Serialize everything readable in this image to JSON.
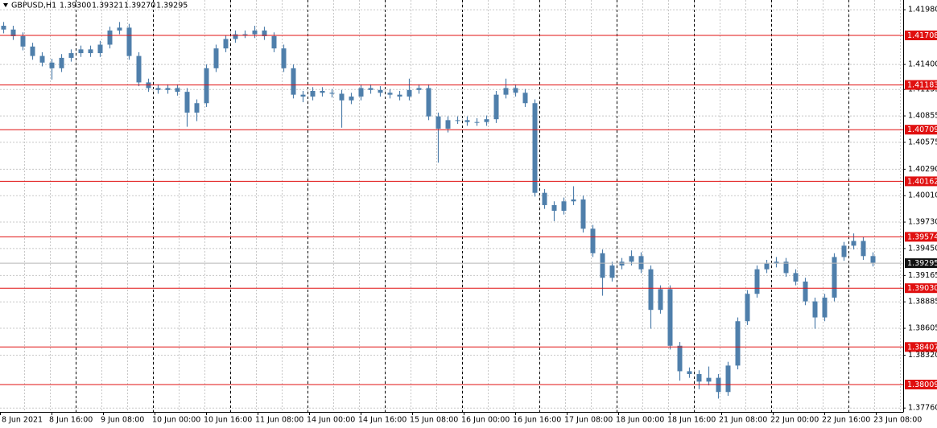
{
  "chart_data": {
    "type": "candlestick",
    "symbol": "GBPUSD,H1",
    "ohlc_header": [
      "1.39300",
      "1.39321",
      "1.39270",
      "1.39295"
    ],
    "color": "#4f7fab",
    "ylim": [
      1.37719,
      1.42083
    ],
    "yticks": [
      {
        "value": 1.4198,
        "label": "1.41980"
      },
      {
        "value": 1.414,
        "label": "1.41400"
      },
      1.41135,
      1.40855,
      1.40575,
      {
        "value": 1.4029,
        "label": "1.40290"
      },
      {
        "value": 1.4001,
        "label": "1.40010"
      },
      {
        "value": 1.3973,
        "label": "1.39730"
      },
      {
        "value": 1.3945,
        "label": "1.39450"
      },
      1.39165,
      1.38885,
      1.38605,
      {
        "value": 1.3832,
        "label": "1.38320"
      },
      {
        "value": 1.3776,
        "label": "1.37760"
      }
    ],
    "levels": [
      1.41708,
      1.41183,
      1.40709,
      1.40162,
      1.39574,
      {
        "value": 1.3903,
        "label": "1.39030"
      },
      1.38407,
      1.38009
    ],
    "level_color": "#e01010",
    "current_price": 1.39295,
    "xtick_labels": [
      "8 Jun 2021",
      "8 Jun 16:00",
      "9 Jun 08:00",
      "10 Jun 00:00",
      "10 Jun 16:00",
      "11 Jun 08:00",
      "14 Jun 00:00",
      "14 Jun 16:00",
      "15 Jun 08:00",
      "16 Jun 00:00",
      "16 Jun 16:00",
      "17 Jun 08:00",
      "18 Jun 00:00",
      "18 Jun 16:00",
      "21 Jun 08:00",
      "22 Jun 00:00",
      "22 Jun 16:00",
      "23 Jun 08:00"
    ],
    "open": [
      1.4181,
      1.4177,
      1.417,
      1.4159,
      1.4149,
      1.4142,
      1.4136,
      1.4147,
      1.4152,
      1.4156,
      1.4152,
      1.4161,
      1.4176,
      1.4179,
      1.4149,
      1.4121,
      1.4115,
      1.4113,
      1.4115,
      1.4111,
      1.4089,
      1.4099,
      1.4136,
      1.4157,
      1.4167,
      1.4172,
      1.4172,
      1.4176,
      1.417,
      1.4157,
      1.4136,
      1.4108,
      1.4106,
      1.4112,
      1.411,
      1.4109,
      1.4102,
      1.4106,
      1.4115,
      1.4113,
      1.411,
      1.4108,
      1.4106,
      1.4113,
      1.4115,
      1.4085,
      1.4072,
      1.4081,
      1.4081,
      1.4079,
      1.4079,
      1.4082,
      1.4108,
      1.4115,
      1.411,
      1.4099,
      1.4004,
      1.3991,
      1.3985,
      1.3995,
      1.3997,
      1.3966,
      1.394,
      1.3914,
      1.3927,
      1.3931,
      1.3937,
      1.3923,
      1.388,
      1.3902,
      1.3842,
      1.3815,
      1.3812,
      1.3804,
      1.3808,
      1.3793,
      1.3821,
      1.3868,
      1.3897,
      1.3923,
      1.3929,
      1.3931,
      1.3919,
      1.391,
      1.3889,
      1.3872,
      1.3893,
      1.3936,
      1.3948,
      1.3953,
      1.3937
    ],
    "high": [
      1.4185,
      1.4181,
      1.4174,
      1.4163,
      1.4153,
      1.4146,
      1.4151,
      1.4156,
      1.416,
      1.416,
      1.4165,
      1.418,
      1.4185,
      1.4183,
      1.4153,
      1.4125,
      1.4119,
      1.4119,
      1.4119,
      1.4115,
      1.4103,
      1.414,
      1.4161,
      1.4171,
      1.4176,
      1.4176,
      1.4181,
      1.418,
      1.4174,
      1.4161,
      1.414,
      1.4112,
      1.4116,
      1.4116,
      1.4114,
      1.4113,
      1.411,
      1.4119,
      1.4119,
      1.4117,
      1.4114,
      1.4112,
      1.4125,
      1.4119,
      1.4119,
      1.4089,
      1.4085,
      1.4085,
      1.4085,
      1.4083,
      1.4086,
      1.4112,
      1.4125,
      1.4119,
      1.4114,
      1.4103,
      1.4008,
      1.3995,
      1.3999,
      1.4011,
      1.4001,
      1.397,
      1.3944,
      1.3931,
      1.3935,
      1.3943,
      1.3941,
      1.3927,
      1.3906,
      1.3906,
      1.3846,
      1.3819,
      1.3816,
      1.382,
      1.3812,
      1.3825,
      1.3872,
      1.3901,
      1.3927,
      1.3933,
      1.3936,
      1.3935,
      1.3923,
      1.3914,
      1.3893,
      1.3897,
      1.394,
      1.3952,
      1.3961,
      1.3957,
      1.3941
    ],
    "low": [
      1.4173,
      1.4166,
      1.4155,
      1.4145,
      1.4138,
      1.4124,
      1.4132,
      1.4143,
      1.4148,
      1.4148,
      1.4148,
      1.4157,
      1.4172,
      1.4145,
      1.4117,
      1.4111,
      1.4109,
      1.4109,
      1.4107,
      1.4074,
      1.408,
      1.4095,
      1.4132,
      1.4153,
      1.4163,
      1.4168,
      1.4168,
      1.4166,
      1.4153,
      1.4132,
      1.4104,
      1.41,
      1.4102,
      1.4106,
      1.4105,
      1.4073,
      1.4098,
      1.4102,
      1.4109,
      1.4106,
      1.4104,
      1.4102,
      1.4102,
      1.4109,
      1.4081,
      1.4036,
      1.4068,
      1.4077,
      1.4075,
      1.4075,
      1.4075,
      1.4078,
      1.4104,
      1.4106,
      1.4095,
      1.4,
      1.3987,
      1.3974,
      1.3981,
      1.3991,
      1.3962,
      1.3936,
      1.3895,
      1.391,
      1.3923,
      1.3927,
      1.3919,
      1.386,
      1.3876,
      1.3838,
      1.3805,
      1.3808,
      1.3796,
      1.38,
      1.3786,
      1.3789,
      1.3817,
      1.3864,
      1.3893,
      1.3919,
      1.3925,
      1.3915,
      1.3906,
      1.3885,
      1.386,
      1.3868,
      1.3889,
      1.3932,
      1.3944,
      1.3933,
      1.3926
    ],
    "close": [
      1.4177,
      1.417,
      1.4159,
      1.4149,
      1.4142,
      1.4136,
      1.4147,
      1.4152,
      1.4156,
      1.4152,
      1.4161,
      1.4176,
      1.4179,
      1.4149,
      1.4121,
      1.4115,
      1.4113,
      1.4115,
      1.4111,
      1.4089,
      1.4099,
      1.4136,
      1.4157,
      1.4167,
      1.4172,
      1.4172,
      1.4176,
      1.417,
      1.4157,
      1.4136,
      1.4108,
      1.4106,
      1.4112,
      1.411,
      1.4109,
      1.4102,
      1.4106,
      1.4115,
      1.4113,
      1.411,
      1.4108,
      1.4106,
      1.4113,
      1.4115,
      1.4085,
      1.4072,
      1.4081,
      1.4081,
      1.4079,
      1.4079,
      1.4082,
      1.4108,
      1.4115,
      1.411,
      1.4099,
      1.4004,
      1.3991,
      1.3985,
      1.3995,
      1.3997,
      1.3966,
      1.394,
      1.3914,
      1.3927,
      1.3931,
      1.3937,
      1.3923,
      1.388,
      1.3902,
      1.3842,
      1.3815,
      1.3812,
      1.3804,
      1.3808,
      1.3793,
      1.3821,
      1.3868,
      1.3897,
      1.3923,
      1.3929,
      1.3931,
      1.3919,
      1.391,
      1.3889,
      1.3872,
      1.3893,
      1.3936,
      1.3948,
      1.3953,
      1.3937,
      1.393
    ]
  }
}
